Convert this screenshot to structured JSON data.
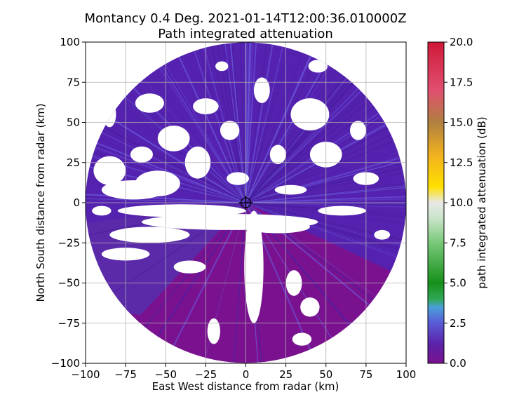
{
  "chart_data": {
    "type": "heatmap",
    "title_line1": "Montancy 0.4 Deg. 2021-01-14T12:00:36.010000Z",
    "title_line2": "Path integrated attenuation",
    "xlabel": "East West distance from radar (km)",
    "ylabel": "North South distance from radar (km)",
    "xlim": [
      -100,
      100
    ],
    "ylim": [
      -100,
      100
    ],
    "x_ticks": [
      -100,
      -75,
      -50,
      -25,
      0,
      25,
      50,
      75,
      100
    ],
    "y_ticks": [
      -100,
      -75,
      -50,
      -25,
      0,
      25,
      50,
      75,
      100
    ],
    "x_tick_labels": [
      "−100",
      "−75",
      "−50",
      "−25",
      "0",
      "25",
      "50",
      "75",
      "100"
    ],
    "y_tick_labels": [
      "−100",
      "−75",
      "−50",
      "−25",
      "0",
      "25",
      "50",
      "75",
      "100"
    ],
    "grid": true,
    "radar_max_range_km": 100,
    "radar_position_km": [
      0,
      0
    ],
    "colorbar": {
      "label": "path integrated attenuation (dB)",
      "range": [
        0.0,
        20.0
      ],
      "ticks": [
        0.0,
        2.5,
        5.0,
        7.5,
        10.0,
        12.5,
        15.0,
        17.5,
        20.0
      ],
      "tick_labels": [
        "0.0",
        "2.5",
        "5.0",
        "7.5",
        "10.0",
        "12.5",
        "15.0",
        "17.5",
        "20.0"
      ],
      "colormap": [
        {
          "value": 0.0,
          "color": "#7a128f"
        },
        {
          "value": 1.2,
          "color": "#5b22a8"
        },
        {
          "value": 2.5,
          "color": "#5a5ad6"
        },
        {
          "value": 3.5,
          "color": "#4aa0d8"
        },
        {
          "value": 4.0,
          "color": "#2ea855"
        },
        {
          "value": 5.0,
          "color": "#16901a"
        },
        {
          "value": 7.5,
          "color": "#78c878"
        },
        {
          "value": 9.0,
          "color": "#c8e4c8"
        },
        {
          "value": 10.0,
          "color": "#e8e8e8"
        },
        {
          "value": 11.0,
          "color": "#ffe000"
        },
        {
          "value": 13.0,
          "color": "#f0b020"
        },
        {
          "value": 15.0,
          "color": "#b08040"
        },
        {
          "value": 17.0,
          "color": "#e05070"
        },
        {
          "value": 20.0,
          "color": "#d01838"
        }
      ]
    },
    "field_summary": "Path integrated attenuation is mostly 0.0 dB (purple) in the southern half and about 1-2.5 dB (blue-violet streaks) in the northern half and along the east, with white gaps where there is no data.",
    "field_colors": {
      "low_south": "#7a128f",
      "mid_north": "#5522b0",
      "streak": "#6a55d8",
      "no_data": "#ffffff"
    }
  }
}
